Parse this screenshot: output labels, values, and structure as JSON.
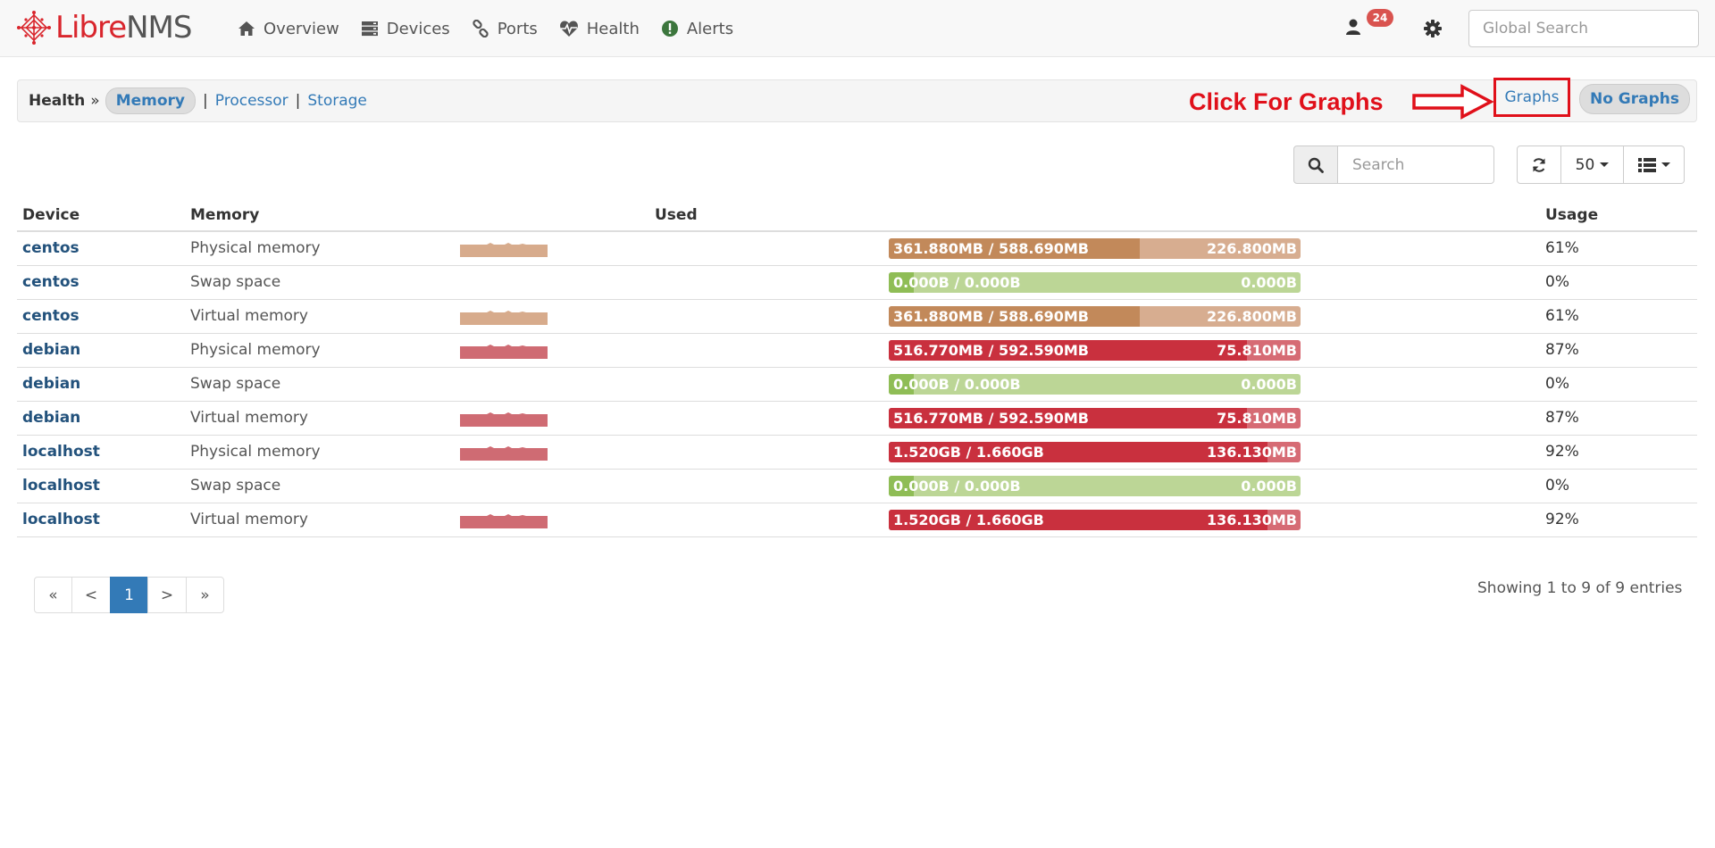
{
  "brand": {
    "part1": "Libre",
    "part2": "NMS"
  },
  "nav": {
    "items": [
      {
        "label": "Overview",
        "icon": "home-icon"
      },
      {
        "label": "Devices",
        "icon": "server-icon"
      },
      {
        "label": "Ports",
        "icon": "link-icon"
      },
      {
        "label": "Health",
        "icon": "heartbeat-icon"
      },
      {
        "label": "Alerts",
        "icon": "exclamation-circle-icon"
      }
    ],
    "user_badge": "24",
    "global_search_placeholder": "Global Search"
  },
  "subheader": {
    "section": "Health",
    "separator": "»",
    "tabs": {
      "memory": "Memory",
      "processor": "Processor",
      "storage": "Storage"
    },
    "pipe": "|",
    "annotation": "Click For Graphs",
    "graphs": "Graphs",
    "no_graphs": "No Graphs"
  },
  "toolbar": {
    "search_placeholder": "Search",
    "per_page": "50"
  },
  "table": {
    "headers": {
      "device": "Device",
      "memory": "Memory",
      "used": "Used",
      "usage": "Usage"
    },
    "rows": [
      {
        "device": "centos",
        "memory": "Physical memory",
        "used_label": "361.880MB / 588.690MB",
        "free_label": "226.800MB",
        "usage": "61%",
        "percent": 61,
        "level": "warn",
        "spark": true
      },
      {
        "device": "centos",
        "memory": "Swap space",
        "used_label": "0.000B / 0.000B",
        "free_label": "0.000B",
        "usage": "0%",
        "percent": 0,
        "level": "ok",
        "spark": false
      },
      {
        "device": "centos",
        "memory": "Virtual memory",
        "used_label": "361.880MB / 588.690MB",
        "free_label": "226.800MB",
        "usage": "61%",
        "percent": 61,
        "level": "warn",
        "spark": true
      },
      {
        "device": "debian",
        "memory": "Physical memory",
        "used_label": "516.770MB / 592.590MB",
        "free_label": "75.810MB",
        "usage": "87%",
        "percent": 87,
        "level": "crit",
        "spark": true
      },
      {
        "device": "debian",
        "memory": "Swap space",
        "used_label": "0.000B / 0.000B",
        "free_label": "0.000B",
        "usage": "0%",
        "percent": 0,
        "level": "ok",
        "spark": false
      },
      {
        "device": "debian",
        "memory": "Virtual memory",
        "used_label": "516.770MB / 592.590MB",
        "free_label": "75.810MB",
        "usage": "87%",
        "percent": 87,
        "level": "crit",
        "spark": true
      },
      {
        "device": "localhost",
        "memory": "Physical memory",
        "used_label": "1.520GB / 1.660GB",
        "free_label": "136.130MB",
        "usage": "92%",
        "percent": 92,
        "level": "crit",
        "spark": true
      },
      {
        "device": "localhost",
        "memory": "Swap space",
        "used_label": "0.000B / 0.000B",
        "free_label": "0.000B",
        "usage": "0%",
        "percent": 0,
        "level": "ok",
        "spark": false
      },
      {
        "device": "localhost",
        "memory": "Virtual memory",
        "used_label": "1.520GB / 1.660GB",
        "free_label": "136.130MB",
        "usage": "92%",
        "percent": 92,
        "level": "crit",
        "spark": true
      }
    ]
  },
  "pagination": {
    "first": "«",
    "prev": "<",
    "current": "1",
    "next": ">",
    "last": "»"
  },
  "footer": {
    "showing": "Showing 1 to 9 of 9 entries"
  },
  "colors": {
    "warn_fill": "#c2895a",
    "warn_bg": "#d7ad90",
    "crit_fill": "#c9303e",
    "crit_bg": "#d66b74",
    "ok_fill": "#8fbd56",
    "ok_bg": "#bcd696",
    "warn_spark": "#d7ab8c",
    "crit_spark": "#cf6b73",
    "link": "#337ab7",
    "annotation": "#e0101a"
  }
}
